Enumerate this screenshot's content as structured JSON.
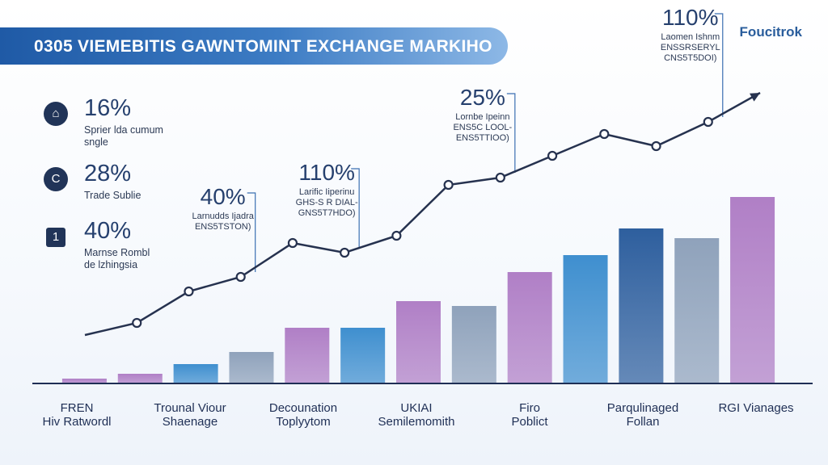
{
  "header": {
    "title": "0305 VIEMEBITIS GAWNTOMINT EXCHANGE MARKIHO",
    "brand": "Foucitrok"
  },
  "stats": [
    {
      "value": "16%",
      "label": "Sprier lda cumum",
      "label2": "sngle",
      "icon": "bank-icon",
      "glyph": "⌂"
    },
    {
      "value": "28%",
      "label": "Trade Sublie",
      "label2": "",
      "icon": "currency-icon",
      "glyph": "C"
    },
    {
      "value": "40%",
      "label": "Marnse Rombl",
      "label2": "de lzhingsia",
      "icon": "lock-icon",
      "glyph": "1"
    }
  ],
  "colors": {
    "bar_pink": "#b07fc6",
    "bar_blue": "#3f8fcf",
    "bar_gray": "#8fa2bb",
    "bar_navy": "#2e5f9e",
    "line": "#26324f"
  },
  "chart_data": {
    "type": "bar",
    "title": "0305 VIEMEBITIS GAWNTOMINT EXCHANGE MARKIHO",
    "xlabel": "",
    "ylabel": "",
    "ylim": [
      0,
      100
    ],
    "grid": false,
    "category_labels": [
      {
        "line1": "FREN",
        "line2": "Hiv Ratwordl"
      },
      {
        "line1": "Trounal Viour",
        "line2": "Shaenage"
      },
      {
        "line1": "Decounation",
        "line2": "Toplyytom"
      },
      {
        "line1": "UKIAI",
        "line2": "Semilemomith"
      },
      {
        "line1": "Firo",
        "line2": "Poblict"
      },
      {
        "line1": "Parqulinaged",
        "line2": "Follan"
      },
      {
        "line1": "RGI Vianages",
        "line2": ""
      }
    ],
    "bars": [
      {
        "value": 2,
        "color": "bar_pink"
      },
      {
        "value": 4,
        "color": "bar_pink"
      },
      {
        "value": 8,
        "color": "bar_blue"
      },
      {
        "value": 13,
        "color": "bar_gray"
      },
      {
        "value": 23,
        "color": "bar_pink"
      },
      {
        "value": 23,
        "color": "bar_blue"
      },
      {
        "value": 34,
        "color": "bar_pink"
      },
      {
        "value": 32,
        "color": "bar_gray"
      },
      {
        "value": 46,
        "color": "bar_pink"
      },
      {
        "value": 53,
        "color": "bar_blue"
      },
      {
        "value": 64,
        "color": "bar_navy"
      },
      {
        "value": 60,
        "color": "bar_gray"
      },
      {
        "value": 77,
        "color": "bar_pink"
      }
    ],
    "trend": {
      "name": "growth trend",
      "values": [
        20,
        25,
        38,
        44,
        58,
        54,
        61,
        82,
        85,
        94,
        103,
        98,
        108,
        120
      ],
      "arrow": true
    },
    "annotations": [
      {
        "value": "40%",
        "sub1": "Larnudds Ijadra",
        "sub2": "ENS5TSTON)",
        "point": 3
      },
      {
        "value": "110%",
        "sub1": "Larific Iiperinu",
        "sub2": "GHS-S R DIAL-",
        "sub3": "GNS5T7HDO)",
        "point": 5
      },
      {
        "value": "25%",
        "sub1": "Lornbe Ipeinn",
        "sub2": "ENS5C LOOL-",
        "sub3": "ENS5TTIOO)",
        "point": 8
      },
      {
        "value": "110%",
        "sub1": "Laomen Ishnm",
        "sub2": "ENSSRSERYL",
        "sub3": "CNS5T5DOI)",
        "point": 12
      }
    ]
  }
}
